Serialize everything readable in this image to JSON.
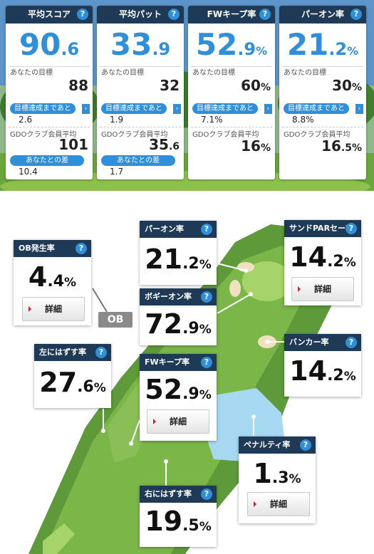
{
  "summary_cards": [
    {
      "title": "平均スコア",
      "int": "90",
      "dec": ".6",
      "unit": "",
      "target_label": "あなたの目標",
      "target": "88",
      "target_dec": "",
      "target_unit": "",
      "gap_label": "目標達成まであと",
      "gap": "2.6",
      "member_label": "GDOクラブ会員平均",
      "member": "101",
      "member_dec": "",
      "member_unit": "",
      "diff_label": "あなたとの差",
      "diff": "10.4"
    },
    {
      "title": "平均パット",
      "int": "33",
      "dec": ".9",
      "unit": "",
      "target_label": "あなたの目標",
      "target": "32",
      "target_dec": "",
      "target_unit": "",
      "gap_label": "目標達成まであと",
      "gap": "1.9",
      "member_label": "GDOクラブ会員平均",
      "member": "35",
      "member_dec": ".6",
      "member_unit": "",
      "diff_label": "あなたとの差",
      "diff": "1.7"
    },
    {
      "title": "FWキープ率",
      "int": "52",
      "dec": ".9",
      "unit": "%",
      "target_label": "あなたの目標",
      "target": "60",
      "target_dec": "",
      "target_unit": "%",
      "gap_label": "目標達成まであと",
      "gap": "7.1%",
      "member_label": "GDOクラブ会員平均",
      "member": "16",
      "member_dec": "",
      "member_unit": "%"
    },
    {
      "title": "パーオン率",
      "int": "21",
      "dec": ".2",
      "unit": "%",
      "target_label": "あなたの目標",
      "target": "30",
      "target_dec": "",
      "target_unit": "%",
      "gap_label": "目標達成まであと",
      "gap": "8.8%",
      "member_label": "GDOクラブ会員平均",
      "member": "16",
      "member_dec": ".5",
      "member_unit": "%"
    }
  ],
  "help_icon": "?",
  "arrow": "›",
  "map": {
    "ob_tag": "OB",
    "detail_label": "詳細",
    "stats": {
      "ob": {
        "title": "OB発生率",
        "int": "4",
        "dec": ".4",
        "unit": "%"
      },
      "paron": {
        "title": "パーオン率",
        "int": "21",
        "dec": ".2",
        "unit": "%"
      },
      "sand": {
        "title": "サンドPARセーブ",
        "int": "14",
        "dec": ".2",
        "unit": "%"
      },
      "bogey": {
        "title": "ボギーオン率",
        "int": "72",
        "dec": ".9",
        "unit": "%"
      },
      "left": {
        "title": "左にはずす率",
        "int": "27",
        "dec": ".6",
        "unit": "%"
      },
      "fw": {
        "title": "FWキープ率",
        "int": "52",
        "dec": ".9",
        "unit": "%"
      },
      "bunker": {
        "title": "バンカー率",
        "int": "14",
        "dec": ".2",
        "unit": "%"
      },
      "penalty": {
        "title": "ペナルティ率",
        "int": "1",
        "dec": ".3",
        "unit": "%"
      },
      "right": {
        "title": "右にはずす率",
        "int": "19",
        "dec": ".5",
        "unit": "%"
      }
    }
  },
  "colors": {
    "navy": "#1e3a56",
    "blue": "#2f8fd8",
    "fairway": "#7ab648",
    "rough": "#5e9a3a",
    "water": "#a7d8f2",
    "sand": "#efe0bf",
    "ob_tag": "#8a8a8a"
  }
}
